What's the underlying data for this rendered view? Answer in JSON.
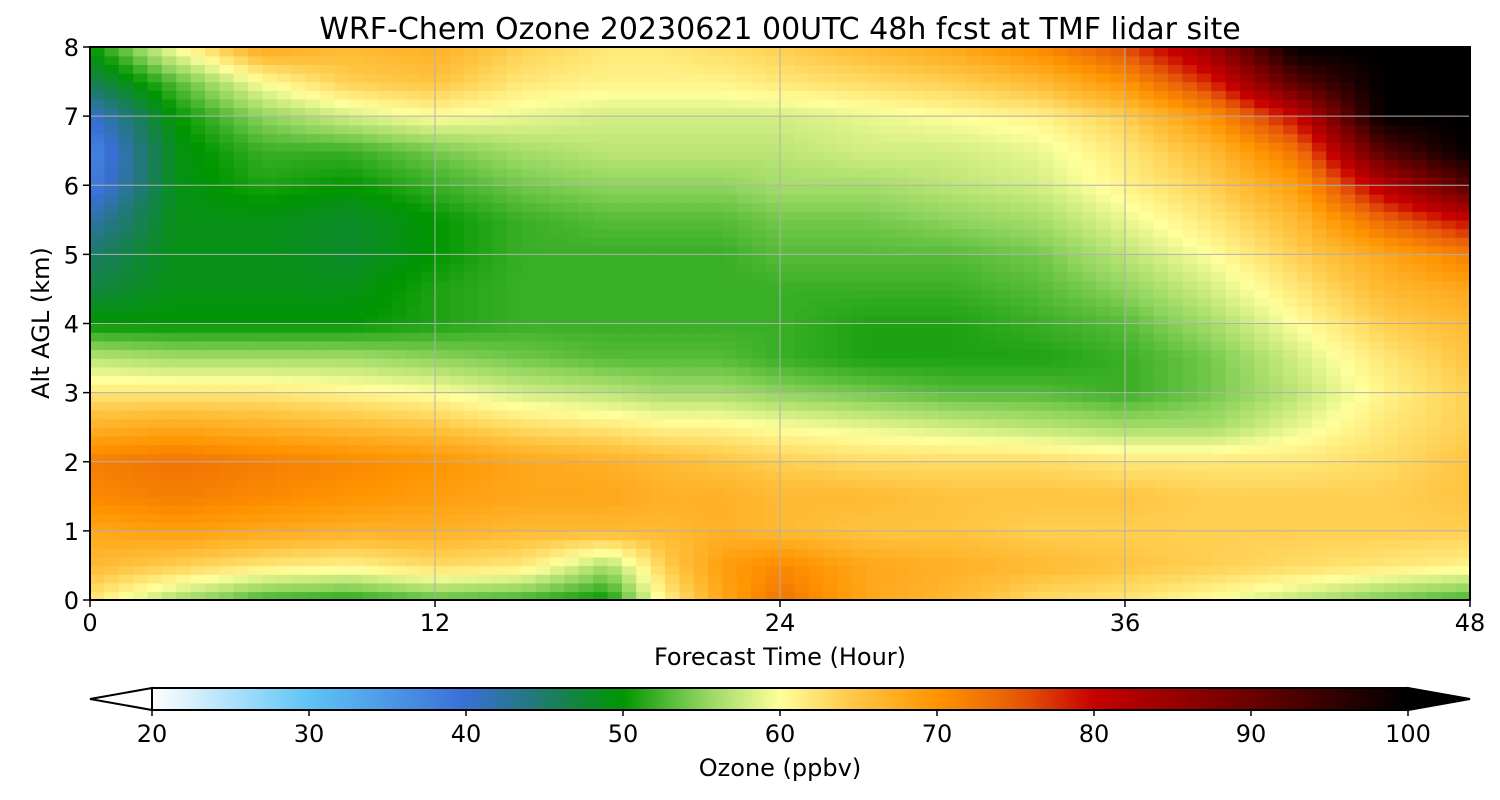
{
  "chart_data": {
    "type": "heatmap",
    "title": "WRF-Chem Ozone  20230621 00UTC 48h fcst at TMF lidar site",
    "xlabel": "Forecast Time (Hour)",
    "ylabel": "Alt AGL (km)",
    "xlim": [
      0,
      48
    ],
    "ylim": [
      0,
      8
    ],
    "x_ticks": [
      "0",
      "12",
      "24",
      "36",
      "48"
    ],
    "y_ticks": [
      "0",
      "1",
      "2",
      "3",
      "4",
      "5",
      "6",
      "7",
      "8"
    ],
    "grid": true,
    "x_hours": [
      0,
      3,
      6,
      9,
      12,
      15,
      18,
      20,
      22,
      24,
      27,
      30,
      33,
      36,
      39,
      42,
      45,
      48
    ],
    "y_km": [
      0,
      0.5,
      1,
      1.5,
      2,
      2.5,
      3,
      3.5,
      4,
      4.5,
      5,
      5.5,
      6,
      6.5,
      7,
      7.5,
      8
    ],
    "z_ppbv": [
      [
        62,
        56,
        52,
        51,
        53,
        52,
        50,
        61,
        68,
        73,
        68,
        66,
        63,
        62,
        60,
        57,
        54,
        52
      ],
      [
        66,
        64,
        62,
        61,
        63,
        62,
        56,
        64,
        69,
        71,
        68,
        67,
        66,
        65,
        64,
        63,
        62,
        61
      ],
      [
        68,
        69,
        68,
        67,
        67,
        66,
        66,
        66,
        67,
        66,
        65,
        65,
        64,
        64,
        64,
        64,
        64,
        64
      ],
      [
        71,
        72,
        71,
        70,
        69,
        68,
        68,
        67,
        67,
        66,
        66,
        65,
        65,
        65,
        64,
        64,
        64,
        65
      ],
      [
        72,
        73,
        72,
        71,
        70,
        68,
        67,
        66,
        65,
        64,
        63,
        63,
        63,
        62,
        62,
        62,
        63,
        65
      ],
      [
        67,
        68,
        67,
        66,
        65,
        63,
        62,
        61,
        61,
        60,
        59,
        58,
        57,
        56,
        56,
        59,
        62,
        64
      ],
      [
        62,
        62,
        62,
        61,
        60,
        58,
        57,
        56,
        56,
        55,
        54,
        53,
        53,
        52,
        54,
        57,
        61,
        64
      ],
      [
        57,
        56,
        56,
        56,
        55,
        54,
        53,
        53,
        53,
        52,
        51,
        51,
        51,
        52,
        54,
        58,
        62,
        65
      ],
      [
        50,
        50,
        50,
        50,
        51,
        52,
        52,
        52,
        52,
        52,
        51,
        51,
        52,
        53,
        56,
        60,
        64,
        66
      ],
      [
        47,
        49,
        49,
        49,
        51,
        52,
        52,
        52,
        52,
        52,
        52,
        52,
        53,
        55,
        58,
        62,
        66,
        68
      ],
      [
        45,
        49,
        49,
        48,
        50,
        52,
        52,
        52,
        52,
        53,
        53,
        53,
        54,
        57,
        60,
        64,
        68,
        72
      ],
      [
        42,
        49,
        49,
        48,
        50,
        52,
        53,
        53,
        53,
        54,
        54,
        55,
        56,
        59,
        62,
        66,
        74,
        80
      ],
      [
        38,
        49,
        51,
        50,
        52,
        54,
        55,
        55,
        55,
        56,
        56,
        57,
        58,
        61,
        64,
        69,
        82,
        92
      ],
      [
        37,
        49,
        52,
        52,
        54,
        56,
        57,
        57,
        57,
        57,
        58,
        58,
        59,
        62,
        66,
        73,
        92,
        100
      ],
      [
        40,
        50,
        55,
        58,
        60,
        59,
        58,
        58,
        58,
        58,
        59,
        60,
        61,
        64,
        70,
        80,
        100,
        100
      ],
      [
        46,
        53,
        60,
        64,
        65,
        62,
        61,
        61,
        61,
        62,
        63,
        64,
        66,
        70,
        78,
        92,
        100,
        100
      ],
      [
        50,
        60,
        68,
        66,
        67,
        64,
        62,
        62,
        63,
        64,
        66,
        68,
        71,
        76,
        85,
        100,
        100,
        100
      ]
    ],
    "colorbar": {
      "label": "Ozone  (ppbv)",
      "min": 20,
      "max": 100,
      "extend": "both",
      "ticks": [
        "20",
        "30",
        "40",
        "50",
        "60",
        "70",
        "80",
        "90",
        "100"
      ],
      "color_stops": [
        {
          "value": 20,
          "color": "#ffffff"
        },
        {
          "value": 30,
          "color": "#5ec4f6"
        },
        {
          "value": 40,
          "color": "#3a6fd6"
        },
        {
          "value": 45,
          "color": "#1e7a6a"
        },
        {
          "value": 50,
          "color": "#009600"
        },
        {
          "value": 55,
          "color": "#8fd45e"
        },
        {
          "value": 60,
          "color": "#ffff9c"
        },
        {
          "value": 65,
          "color": "#ffc33f"
        },
        {
          "value": 70,
          "color": "#ff9400"
        },
        {
          "value": 75,
          "color": "#e85d08"
        },
        {
          "value": 80,
          "color": "#c80000"
        },
        {
          "value": 90,
          "color": "#6a0000"
        },
        {
          "value": 100,
          "color": "#000000"
        }
      ]
    }
  }
}
